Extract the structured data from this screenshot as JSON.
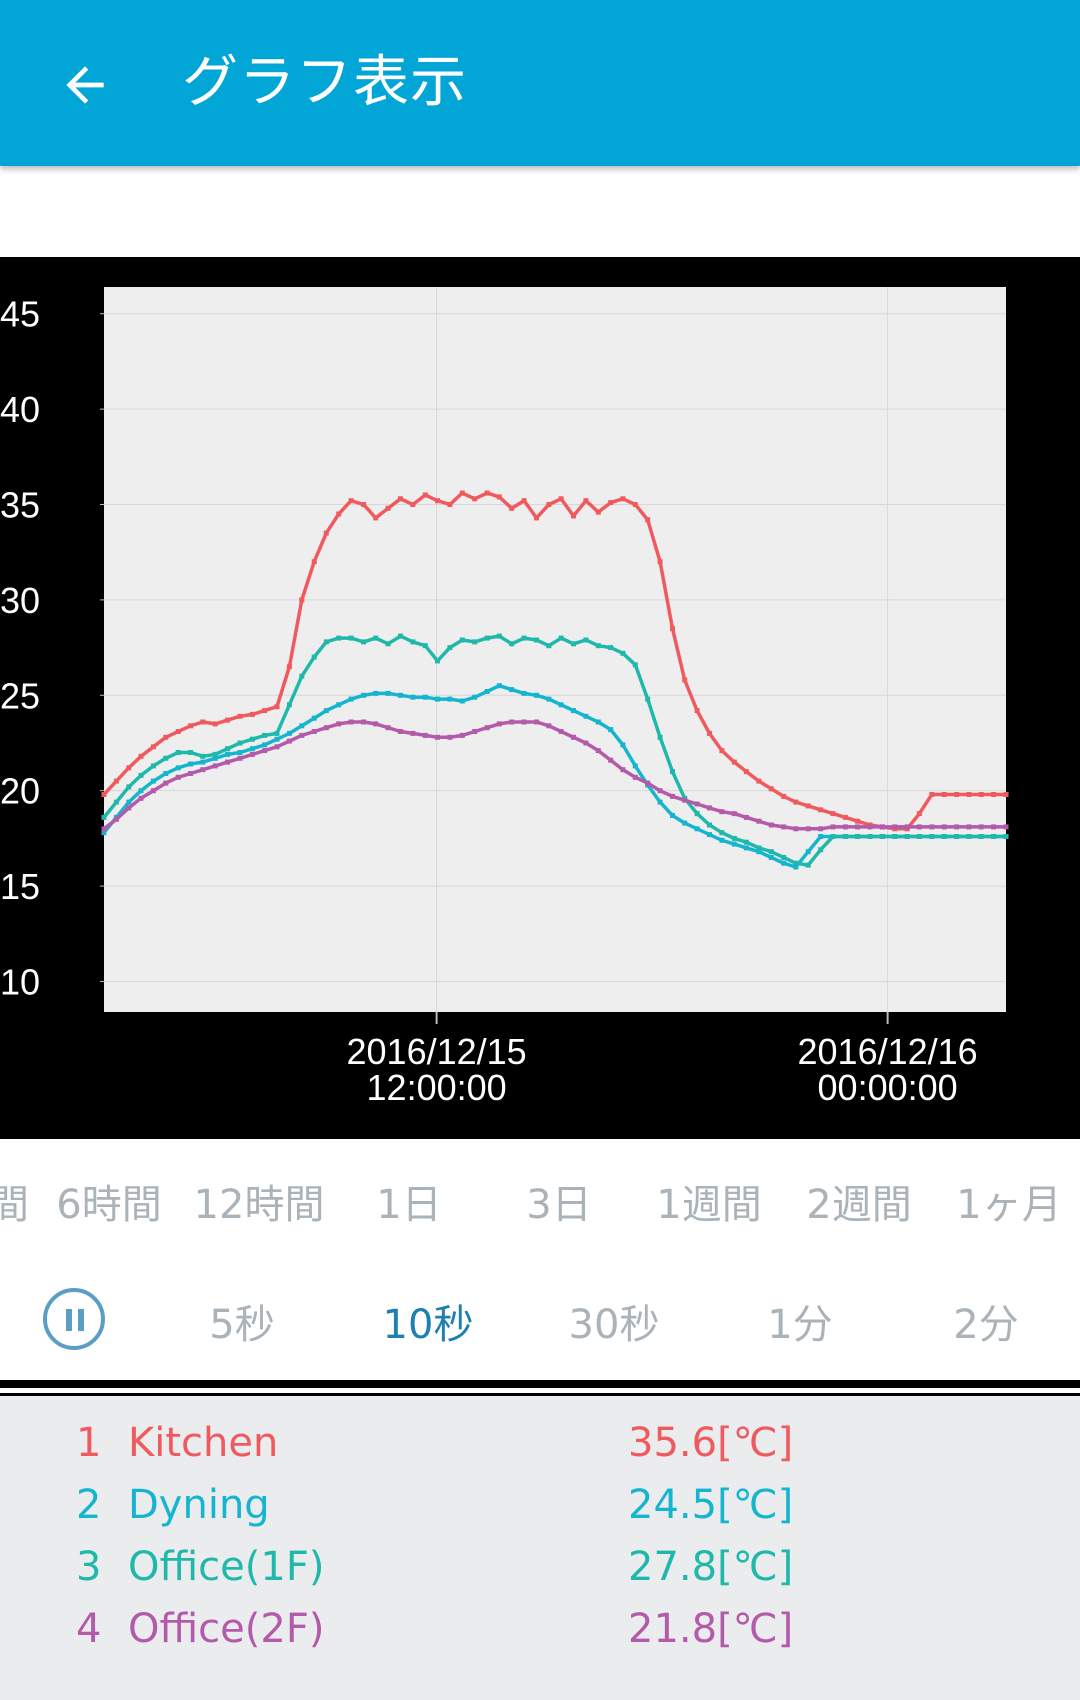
{
  "app_bar": {
    "title": "グラフ表示",
    "back_icon": "arrow-left-icon",
    "background_color": "#02a6d6"
  },
  "chart_data": {
    "type": "line",
    "x_tick_labels": [
      {
        "line1": "2016/12/15",
        "line2": "12:00:00"
      },
      {
        "line1": "2016/12/16",
        "line2": "00:00:00"
      }
    ],
    "y_ticks": [
      45,
      40,
      35,
      30,
      25,
      20,
      15,
      10
    ],
    "ylim": [
      8.4,
      46.4
    ],
    "grid": true,
    "series": [
      {
        "name": "Kitchen",
        "color": "#f05a5e",
        "x": [
          0,
          0.55,
          1.1,
          1.64,
          2.19,
          2.74,
          3.29,
          3.84,
          4.38,
          4.93,
          5.48,
          6.03,
          6.58,
          7.12,
          7.67,
          8.22,
          8.77,
          9.32,
          9.86,
          10.41,
          10.96,
          11.51,
          12.05,
          12.6,
          13.15,
          13.7,
          14.25,
          14.79,
          15.34,
          15.89,
          16.44,
          16.99,
          17.53,
          18.08,
          18.63,
          19.18,
          19.73,
          20.27,
          20.82,
          21.37,
          21.92,
          22.47,
          23.01,
          23.56,
          24.11,
          24.66,
          25.21,
          25.75,
          26.3,
          26.85,
          27.4,
          27.95,
          28.49,
          29.04,
          29.59,
          30.14,
          30.68,
          31.23,
          31.78,
          32.33,
          32.88,
          33.42,
          33.97,
          34.52,
          35.07,
          35.62,
          36.16,
          36.71,
          37.26,
          37.81,
          38.36,
          38.9,
          39.45,
          40
        ],
        "values": [
          19.8,
          20.5,
          21.2,
          21.8,
          22.3,
          22.8,
          23.1,
          23.4,
          23.6,
          23.5,
          23.7,
          23.9,
          24.0,
          24.2,
          24.4,
          26.5,
          30.0,
          32.0,
          33.5,
          34.5,
          35.2,
          35.0,
          34.3,
          34.8,
          35.3,
          35.0,
          35.5,
          35.2,
          35.0,
          35.6,
          35.3,
          35.6,
          35.4,
          34.8,
          35.2,
          34.3,
          35.0,
          35.3,
          34.4,
          35.2,
          34.6,
          35.1,
          35.3,
          35.0,
          34.2,
          32.0,
          28.5,
          25.8,
          24.2,
          23.0,
          22.1,
          21.5,
          21.0,
          20.5,
          20.1,
          19.7,
          19.4,
          19.2,
          19.0,
          18.8,
          18.6,
          18.4,
          18.2,
          18.1,
          18.0,
          18.0,
          18.8,
          19.8,
          19.8,
          19.8,
          19.8,
          19.8,
          19.8,
          19.8
        ]
      },
      {
        "name": "Dyning",
        "color": "#16b5cf",
        "x": [
          0,
          0.55,
          1.1,
          1.64,
          2.19,
          2.74,
          3.29,
          3.84,
          4.38,
          4.93,
          5.48,
          6.03,
          6.58,
          7.12,
          7.67,
          8.22,
          8.77,
          9.32,
          9.86,
          10.41,
          10.96,
          11.51,
          12.05,
          12.6,
          13.15,
          13.7,
          14.25,
          14.79,
          15.34,
          15.89,
          16.44,
          16.99,
          17.53,
          18.08,
          18.63,
          19.18,
          19.73,
          20.27,
          20.82,
          21.37,
          21.92,
          22.47,
          23.01,
          23.56,
          24.11,
          24.66,
          25.21,
          25.75,
          26.3,
          26.85,
          27.4,
          27.95,
          28.49,
          29.04,
          29.59,
          30.14,
          30.68,
          31.23,
          31.78,
          32.33,
          32.88,
          33.42,
          33.97,
          34.52,
          35.07,
          35.62,
          36.16,
          36.71,
          37.26,
          37.81,
          38.36,
          38.9,
          39.45,
          40
        ],
        "values": [
          17.8,
          18.6,
          19.4,
          20.0,
          20.5,
          20.9,
          21.2,
          21.4,
          21.5,
          21.7,
          21.9,
          22.0,
          22.2,
          22.4,
          22.7,
          23.0,
          23.4,
          23.8,
          24.2,
          24.5,
          24.8,
          25.0,
          25.1,
          25.1,
          25.0,
          24.9,
          24.9,
          24.8,
          24.8,
          24.7,
          24.9,
          25.2,
          25.5,
          25.3,
          25.1,
          25.0,
          24.8,
          24.5,
          24.2,
          23.9,
          23.6,
          23.2,
          22.4,
          21.3,
          20.3,
          19.4,
          18.7,
          18.3,
          18.0,
          17.7,
          17.4,
          17.2,
          17.0,
          16.8,
          16.5,
          16.2,
          16.0,
          16.8,
          17.6,
          17.6,
          17.6,
          17.6,
          17.6,
          17.6,
          17.6,
          17.6,
          17.6,
          17.6,
          17.6,
          17.6,
          17.6,
          17.6,
          17.6,
          17.6
        ]
      },
      {
        "name": "Office(1F)",
        "color": "#1fb8aa",
        "x": [
          0,
          0.55,
          1.1,
          1.64,
          2.19,
          2.74,
          3.29,
          3.84,
          4.38,
          4.93,
          5.48,
          6.03,
          6.58,
          7.12,
          7.67,
          8.22,
          8.77,
          9.32,
          9.86,
          10.41,
          10.96,
          11.51,
          12.05,
          12.6,
          13.15,
          13.7,
          14.25,
          14.79,
          15.34,
          15.89,
          16.44,
          16.99,
          17.53,
          18.08,
          18.63,
          19.18,
          19.73,
          20.27,
          20.82,
          21.37,
          21.92,
          22.47,
          23.01,
          23.56,
          24.11,
          24.66,
          25.21,
          25.75,
          26.3,
          26.85,
          27.4,
          27.95,
          28.49,
          29.04,
          29.59,
          30.14,
          30.68,
          31.23,
          31.78,
          32.33,
          32.88,
          33.42,
          33.97,
          34.52,
          35.07,
          35.62,
          36.16,
          36.71,
          37.26,
          37.81,
          38.36,
          38.9,
          39.45,
          40
        ],
        "values": [
          18.6,
          19.4,
          20.2,
          20.8,
          21.3,
          21.7,
          22.0,
          22.0,
          21.8,
          21.9,
          22.2,
          22.5,
          22.7,
          22.9,
          23.0,
          24.5,
          26.0,
          27.0,
          27.8,
          28.0,
          28.0,
          27.8,
          28.0,
          27.7,
          28.1,
          27.8,
          27.6,
          26.8,
          27.5,
          27.9,
          27.8,
          28.0,
          28.1,
          27.7,
          28.0,
          27.9,
          27.6,
          28.0,
          27.7,
          27.9,
          27.6,
          27.5,
          27.2,
          26.6,
          24.8,
          22.8,
          21.0,
          19.6,
          18.8,
          18.2,
          17.8,
          17.5,
          17.3,
          17.0,
          16.8,
          16.5,
          16.2,
          16.1,
          16.9,
          17.6,
          17.6,
          17.6,
          17.6,
          17.6,
          17.6,
          17.6,
          17.6,
          17.6,
          17.6,
          17.6,
          17.6,
          17.6,
          17.6,
          17.6
        ]
      },
      {
        "name": "Office(2F)",
        "color": "#b35aab",
        "x": [
          0,
          0.55,
          1.1,
          1.64,
          2.19,
          2.74,
          3.29,
          3.84,
          4.38,
          4.93,
          5.48,
          6.03,
          6.58,
          7.12,
          7.67,
          8.22,
          8.77,
          9.32,
          9.86,
          10.41,
          10.96,
          11.51,
          12.05,
          12.6,
          13.15,
          13.7,
          14.25,
          14.79,
          15.34,
          15.89,
          16.44,
          16.99,
          17.53,
          18.08,
          18.63,
          19.18,
          19.73,
          20.27,
          20.82,
          21.37,
          21.92,
          22.47,
          23.01,
          23.56,
          24.11,
          24.66,
          25.21,
          25.75,
          26.3,
          26.85,
          27.4,
          27.95,
          28.49,
          29.04,
          29.59,
          30.14,
          30.68,
          31.23,
          31.78,
          32.33,
          32.88,
          33.42,
          33.97,
          34.52,
          35.07,
          35.62,
          36.16,
          36.71,
          37.26,
          37.81,
          38.36,
          38.9,
          39.45,
          40
        ],
        "values": [
          18.0,
          18.5,
          19.1,
          19.6,
          20.0,
          20.4,
          20.7,
          20.9,
          21.1,
          21.3,
          21.5,
          21.7,
          21.9,
          22.1,
          22.3,
          22.6,
          22.9,
          23.1,
          23.3,
          23.5,
          23.6,
          23.6,
          23.5,
          23.3,
          23.1,
          23.0,
          22.9,
          22.8,
          22.8,
          22.9,
          23.1,
          23.3,
          23.5,
          23.6,
          23.6,
          23.6,
          23.4,
          23.1,
          22.8,
          22.5,
          22.1,
          21.6,
          21.1,
          20.7,
          20.4,
          20.0,
          19.7,
          19.5,
          19.3,
          19.1,
          18.9,
          18.8,
          18.6,
          18.4,
          18.2,
          18.1,
          18.0,
          18.0,
          18.0,
          18.1,
          18.1,
          18.1,
          18.1,
          18.1,
          18.1,
          18.1,
          18.1,
          18.1,
          18.1,
          18.1,
          18.1,
          18.1,
          18.1,
          18.1
        ]
      }
    ]
  },
  "range_tabs": [
    "間",
    "6時間",
    "12時間",
    "1日",
    "3日",
    "1週間",
    "2週間",
    "1ヶ月"
  ],
  "interval_tabs": [
    "5秒",
    "10秒",
    "30秒",
    "1分",
    "2分"
  ],
  "interval_active": "10秒",
  "pause_icon": "pause-circle-icon",
  "legend": [
    {
      "num": "1",
      "name": "Kitchen",
      "value": "35.6[℃]",
      "color": "#f05a5e"
    },
    {
      "num": "2",
      "name": "Dyning",
      "value": "24.5[℃]",
      "color": "#16b5cf"
    },
    {
      "num": "3",
      "name": "Office(1F)",
      "value": "27.8[℃]",
      "color": "#1fb8aa"
    },
    {
      "num": "4",
      "name": "Office(2F)",
      "value": "21.8[℃]",
      "color": "#b35aab"
    }
  ]
}
